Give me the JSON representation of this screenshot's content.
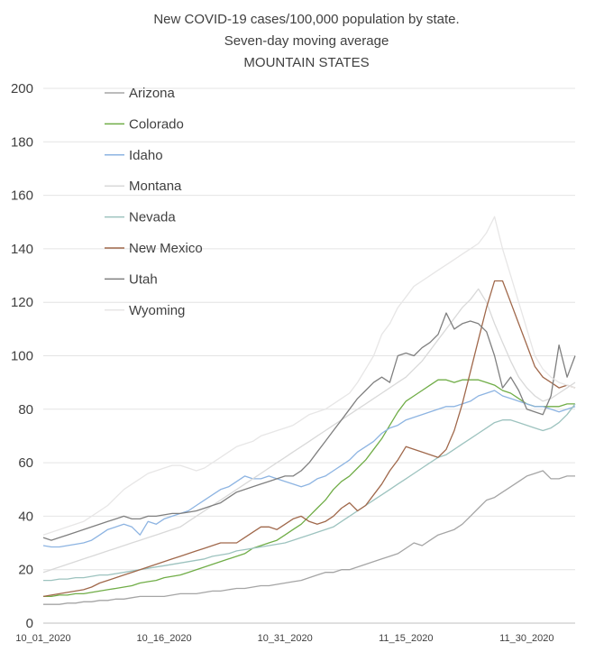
{
  "chart_data": {
    "type": "line",
    "title_lines": [
      "New COVID-19 cases/100,000 population by state.",
      "Seven-day moving average",
      "MOUNTAIN STATES"
    ],
    "ylim": [
      0,
      200
    ],
    "yticks": [
      0,
      20,
      40,
      60,
      80,
      100,
      120,
      140,
      160,
      180,
      200
    ],
    "grid": true,
    "legend_position": "top-left, inside plot",
    "x_start": "10_01_2020",
    "x_count": 67,
    "x_tick_labels": [
      {
        "index": 0,
        "label": "10_01_2020"
      },
      {
        "index": 15,
        "label": "10_16_2020"
      },
      {
        "index": 30,
        "label": "10_31_2020"
      },
      {
        "index": 45,
        "label": "11_15_2020"
      },
      {
        "index": 60,
        "label": "11_30_2020"
      }
    ],
    "series": [
      {
        "name": "Arizona",
        "color": "#a5a5a5",
        "values": [
          7,
          7,
          7,
          7.5,
          7.5,
          8,
          8,
          8.5,
          8.5,
          9,
          9,
          9.5,
          10,
          10,
          10,
          10,
          10.5,
          11,
          11,
          11,
          11.5,
          12,
          12,
          12.5,
          13,
          13,
          13.5,
          14,
          14,
          14.5,
          15,
          15.5,
          16,
          17,
          18,
          19,
          19,
          20,
          20,
          21,
          22,
          23,
          24,
          25,
          26,
          28,
          30,
          29,
          31,
          33,
          34,
          35,
          37,
          40,
          43,
          46,
          47,
          49,
          51,
          53,
          55,
          56,
          57,
          54,
          54,
          55,
          55
        ]
      },
      {
        "name": "Colorado",
        "color": "#70ad47",
        "values": [
          10,
          10,
          10.5,
          10.5,
          11,
          11,
          11.5,
          12,
          12.5,
          13,
          13.5,
          14,
          15,
          15.5,
          16,
          17,
          17.5,
          18,
          19,
          20,
          21,
          22,
          23,
          24,
          25,
          26,
          28,
          29,
          30,
          31,
          33,
          35,
          37,
          40,
          43,
          46,
          50,
          53,
          55,
          58,
          61,
          65,
          69,
          74,
          79,
          83,
          85,
          87,
          89,
          91,
          91,
          90,
          91,
          91,
          91,
          90,
          89,
          87,
          86,
          84,
          82,
          81,
          81,
          81,
          81,
          82,
          82
        ]
      },
      {
        "name": "Idaho",
        "color": "#8db4e2",
        "values": [
          29,
          28.5,
          28.5,
          29,
          29.5,
          30,
          31,
          33,
          35,
          36,
          37,
          36,
          33,
          38,
          37,
          39,
          40,
          41,
          42,
          44,
          46,
          48,
          50,
          51,
          53,
          55,
          54,
          54,
          55,
          54,
          53,
          52,
          51,
          52,
          54,
          55,
          57,
          59,
          61,
          64,
          66,
          68,
          71,
          73,
          74,
          76,
          77,
          78,
          79,
          80,
          81,
          81,
          82,
          83,
          85,
          86,
          87,
          85,
          84,
          83,
          82,
          81,
          81,
          80,
          79,
          80,
          81
        ]
      },
      {
        "name": "Montana",
        "color": "#d9d9d9",
        "values": [
          19,
          20,
          21,
          22,
          23,
          24,
          25,
          26,
          27,
          28,
          29,
          30,
          31,
          32,
          33,
          34,
          35,
          36,
          38,
          40,
          42,
          44,
          46,
          48,
          50,
          52,
          54,
          56,
          58,
          60,
          62,
          64,
          66,
          68,
          70,
          72,
          74,
          76,
          78,
          80,
          82,
          84,
          86,
          88,
          90,
          92,
          95,
          98,
          102,
          106,
          110,
          114,
          118,
          121,
          125,
          120,
          112,
          105,
          98,
          92,
          88,
          85,
          83,
          84,
          86,
          88,
          90
        ]
      },
      {
        "name": "Nevada",
        "color": "#9dc3bf",
        "values": [
          16,
          16,
          16.5,
          16.5,
          17,
          17,
          17.5,
          18,
          18,
          18.5,
          19,
          19.5,
          20,
          20.5,
          21,
          21.5,
          22,
          22.5,
          23,
          23.5,
          24,
          25,
          25.5,
          26,
          27,
          27.5,
          28,
          28.5,
          29,
          29.5,
          30,
          31,
          32,
          33,
          34,
          35,
          36,
          38,
          40,
          42,
          44,
          46,
          48,
          50,
          52,
          54,
          56,
          58,
          60,
          62,
          63,
          65,
          67,
          69,
          71,
          73,
          75,
          76,
          76,
          75,
          74,
          73,
          72,
          73,
          75,
          78,
          82
        ]
      },
      {
        "name": "New Mexico",
        "color": "#a0684b",
        "values": [
          10,
          10.5,
          11,
          11.5,
          12,
          12.5,
          13.5,
          15,
          16,
          17,
          18,
          19,
          20,
          21,
          22,
          23,
          24,
          25,
          26,
          27,
          28,
          29,
          30,
          30,
          30,
          32,
          34,
          36,
          36,
          35,
          37,
          39,
          40,
          38,
          37,
          38,
          40,
          43,
          45,
          42,
          44,
          48,
          52,
          57,
          61,
          66,
          65,
          64,
          63,
          62,
          65,
          72,
          82,
          94,
          106,
          118,
          128,
          128,
          120,
          112,
          104,
          96,
          92,
          90,
          88,
          89,
          88
        ]
      },
      {
        "name": "Utah",
        "color": "#7f7f7f",
        "values": [
          32,
          31,
          32,
          33,
          34,
          35,
          36,
          37,
          38,
          39,
          40,
          39,
          39,
          40,
          40,
          40.5,
          41,
          41,
          41.5,
          42,
          43,
          44,
          45,
          47,
          49,
          50,
          51,
          52,
          53,
          54,
          55,
          55,
          57,
          60,
          64,
          68,
          72,
          76,
          80,
          84,
          87,
          90,
          92,
          90,
          100,
          101,
          100,
          103,
          105,
          108,
          116,
          110,
          112,
          113,
          112,
          109,
          100,
          88,
          92,
          87,
          80,
          79,
          78,
          85,
          104,
          92,
          100
        ]
      },
      {
        "name": "Wyoming",
        "color": "#e7e6e6",
        "values": [
          33,
          34,
          35,
          36,
          37,
          38,
          40,
          42,
          44,
          47,
          50,
          52,
          54,
          56,
          57,
          58,
          59,
          59,
          58,
          57,
          58,
          60,
          62,
          64,
          66,
          67,
          68,
          70,
          71,
          72,
          73,
          74,
          76,
          78,
          79,
          80,
          82,
          84,
          86,
          90,
          95,
          100,
          108,
          112,
          118,
          122,
          126,
          128,
          130,
          132,
          134,
          136,
          138,
          140,
          142,
          146,
          152,
          140,
          130,
          120,
          110,
          100,
          95,
          92,
          90,
          89,
          88
        ]
      }
    ]
  }
}
